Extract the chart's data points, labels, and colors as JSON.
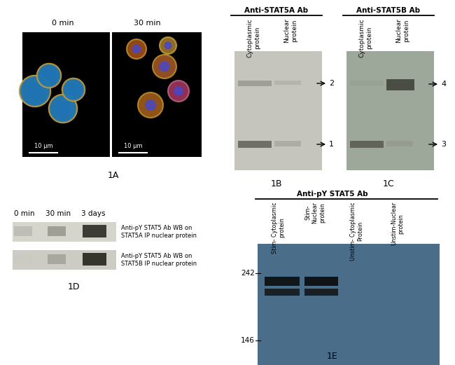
{
  "panel_1A_label": "1A",
  "panel_1B_label": "1B",
  "panel_1C_label": "1C",
  "panel_1D_label": "1D",
  "panel_1E_label": "1E",
  "label_0min": "0 min",
  "label_30min": "30 min",
  "label_3days": "3 days",
  "scale_bar": "10 μm",
  "anti_STAT5A": "Anti-STAT5A Ab",
  "anti_STAT5B": "Anti-STAT5B Ab",
  "anti_pY": "Anti-pY STAT5 Ab",
  "marker_242": "242",
  "marker_146": "146",
  "wb_label1": "Anti-pY STAT5 Ab WB on\nSTAT5A IP nuclear protein",
  "wb_label2": "Anti-pY STAT5 Ab WB on\nSTAT5B IP nuclear protein",
  "bg_1B": "#c5c5bd",
  "bg_1C": "#9ea89a",
  "bg_1E": "#4a6e8a",
  "bg_1D_top": "#d5d5cc",
  "bg_1D_bot": "#ccccC4"
}
